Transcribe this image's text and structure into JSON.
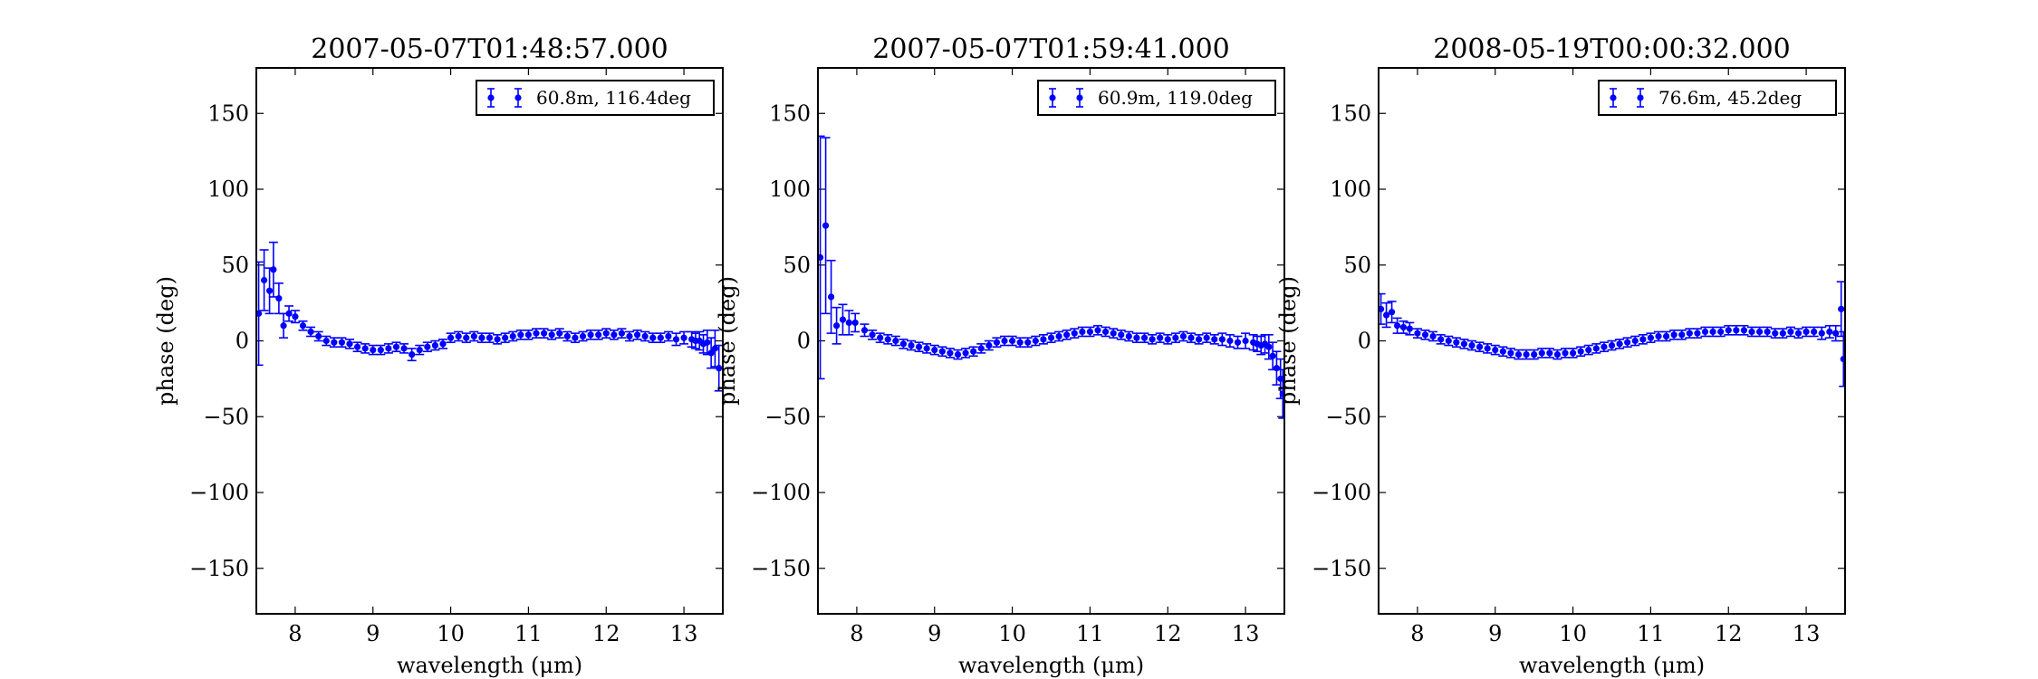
{
  "series_color": "#0000ff",
  "chart_data": [
    {
      "type": "scatter",
      "title": "2007-05-07T01:48:57.000",
      "xlabel": "wavelength (μm)",
      "ylabel": "phase (deg)",
      "xlim": [
        7.5,
        13.5
      ],
      "ylim": [
        -180,
        180
      ],
      "xticks": [
        8,
        9,
        10,
        11,
        12,
        13
      ],
      "yticks": [
        -150,
        -100,
        -50,
        0,
        50,
        100,
        150
      ],
      "grid": false,
      "legend_position": "top-right",
      "series": [
        {
          "name": "60.8m, 116.4deg",
          "x": [
            7.53,
            7.6,
            7.67,
            7.72,
            7.79,
            7.85,
            7.92,
            8.0,
            8.1,
            8.2,
            8.3,
            8.4,
            8.5,
            8.6,
            8.7,
            8.8,
            8.9,
            9.0,
            9.1,
            9.2,
            9.3,
            9.4,
            9.5,
            9.6,
            9.7,
            9.8,
            9.9,
            10.0,
            10.1,
            10.2,
            10.3,
            10.4,
            10.5,
            10.6,
            10.7,
            10.8,
            10.9,
            11.0,
            11.1,
            11.2,
            11.3,
            11.4,
            11.5,
            11.6,
            11.7,
            11.8,
            11.9,
            12.0,
            12.1,
            12.2,
            12.3,
            12.4,
            12.5,
            12.6,
            12.7,
            12.8,
            12.9,
            13.0,
            13.1,
            13.15,
            13.2,
            13.25,
            13.3,
            13.35,
            13.4,
            13.45
          ],
          "y": [
            18,
            40,
            33,
            47,
            28,
            10,
            18,
            16,
            10,
            6,
            3,
            0,
            -1,
            -1,
            -2,
            -4,
            -5,
            -6,
            -6,
            -5,
            -4,
            -5,
            -9,
            -6,
            -4,
            -3,
            -2,
            2,
            3,
            2,
            3,
            2,
            2,
            1,
            2,
            3,
            4,
            4,
            5,
            5,
            4,
            5,
            3,
            2,
            3,
            4,
            4,
            5,
            4,
            5,
            3,
            4,
            3,
            2,
            2,
            3,
            1,
            2,
            1,
            0,
            0,
            -2,
            -1,
            -8,
            -5,
            -18
          ],
          "err": [
            34,
            20,
            15,
            18,
            10,
            8,
            5,
            4,
            3,
            3,
            3,
            3,
            3,
            3,
            3,
            3,
            3,
            3,
            3,
            3,
            3,
            3,
            4,
            3,
            3,
            3,
            3,
            3,
            3,
            3,
            3,
            3,
            3,
            3,
            3,
            3,
            3,
            3,
            3,
            3,
            3,
            3,
            3,
            3,
            3,
            3,
            3,
            3,
            3,
            3,
            3,
            3,
            3,
            3,
            3,
            3,
            4,
            4,
            5,
            5,
            6,
            6,
            8,
            10,
            12,
            15
          ]
        }
      ]
    },
    {
      "type": "scatter",
      "title": "2007-05-07T01:59:41.000",
      "xlabel": "wavelength (μm)",
      "ylabel": "phase (deg)",
      "xlim": [
        7.5,
        13.5
      ],
      "ylim": [
        -180,
        180
      ],
      "xticks": [
        8,
        9,
        10,
        11,
        12,
        13
      ],
      "yticks": [
        -150,
        -100,
        -50,
        0,
        50,
        100,
        150
      ],
      "grid": false,
      "legend_position": "top-right",
      "series": [
        {
          "name": "60.9m, 119.0deg",
          "x": [
            7.53,
            7.6,
            7.67,
            7.74,
            7.82,
            7.9,
            7.98,
            8.1,
            8.2,
            8.3,
            8.4,
            8.5,
            8.6,
            8.7,
            8.8,
            8.9,
            9.0,
            9.1,
            9.2,
            9.3,
            9.4,
            9.5,
            9.6,
            9.7,
            9.8,
            9.9,
            10.0,
            10.1,
            10.2,
            10.3,
            10.4,
            10.5,
            10.6,
            10.7,
            10.8,
            10.9,
            11.0,
            11.1,
            11.2,
            11.3,
            11.4,
            11.5,
            11.6,
            11.7,
            11.8,
            11.9,
            12.0,
            12.1,
            12.2,
            12.3,
            12.4,
            12.5,
            12.6,
            12.7,
            12.8,
            12.9,
            13.0,
            13.1,
            13.15,
            13.2,
            13.25,
            13.3,
            13.35,
            13.4,
            13.45,
            13.48
          ],
          "y": [
            55,
            76,
            29,
            10,
            14,
            12,
            12,
            7,
            4,
            2,
            1,
            0,
            -2,
            -3,
            -4,
            -5,
            -6,
            -7,
            -8,
            -9,
            -8,
            -7,
            -5,
            -3,
            -1,
            0,
            0,
            -1,
            -1,
            0,
            1,
            2,
            3,
            4,
            5,
            6,
            6,
            7,
            6,
            5,
            4,
            3,
            2,
            2,
            1,
            2,
            1,
            2,
            3,
            2,
            1,
            2,
            1,
            1,
            0,
            -1,
            0,
            -1,
            -2,
            -3,
            -2,
            -4,
            -10,
            -18,
            -25,
            -35
          ],
          "err": [
            80,
            58,
            24,
            12,
            10,
            8,
            6,
            4,
            3,
            3,
            3,
            3,
            3,
            3,
            3,
            3,
            3,
            3,
            3,
            3,
            3,
            3,
            3,
            3,
            3,
            3,
            3,
            3,
            3,
            3,
            3,
            3,
            3,
            3,
            3,
            3,
            3,
            3,
            3,
            3,
            3,
            3,
            3,
            3,
            3,
            3,
            3,
            3,
            3,
            3,
            3,
            3,
            3,
            4,
            4,
            4,
            5,
            5,
            5,
            6,
            6,
            8,
            9,
            11,
            13,
            16
          ]
        }
      ]
    },
    {
      "type": "scatter",
      "title": "2008-05-19T00:00:32.000",
      "xlabel": "wavelength (μm)",
      "ylabel": "phase (deg)",
      "xlim": [
        7.5,
        13.5
      ],
      "ylim": [
        -180,
        180
      ],
      "xticks": [
        8,
        9,
        10,
        11,
        12,
        13
      ],
      "yticks": [
        -150,
        -100,
        -50,
        0,
        50,
        100,
        150
      ],
      "grid": false,
      "legend_position": "top-right",
      "series": [
        {
          "name": "76.6m, 45.2deg",
          "x": [
            7.53,
            7.6,
            7.67,
            7.74,
            7.82,
            7.9,
            8.0,
            8.1,
            8.2,
            8.3,
            8.4,
            8.5,
            8.6,
            8.7,
            8.8,
            8.9,
            9.0,
            9.1,
            9.2,
            9.3,
            9.4,
            9.5,
            9.6,
            9.7,
            9.8,
            9.9,
            10.0,
            10.1,
            10.2,
            10.3,
            10.4,
            10.5,
            10.6,
            10.7,
            10.8,
            10.9,
            11.0,
            11.1,
            11.2,
            11.3,
            11.4,
            11.5,
            11.6,
            11.7,
            11.8,
            11.9,
            12.0,
            12.1,
            12.2,
            12.3,
            12.4,
            12.5,
            12.6,
            12.7,
            12.8,
            12.9,
            13.0,
            13.1,
            13.2,
            13.3,
            13.38,
            13.45,
            13.48
          ],
          "y": [
            21,
            17,
            19,
            10,
            9,
            8,
            5,
            4,
            3,
            1,
            0,
            -1,
            -2,
            -3,
            -4,
            -5,
            -6,
            -7,
            -8,
            -9,
            -9,
            -9,
            -8,
            -8,
            -9,
            -8,
            -8,
            -7,
            -6,
            -5,
            -4,
            -3,
            -2,
            -1,
            0,
            1,
            2,
            3,
            3,
            4,
            4,
            5,
            5,
            6,
            6,
            6,
            7,
            7,
            7,
            6,
            6,
            6,
            5,
            5,
            6,
            5,
            6,
            6,
            5,
            6,
            5,
            21,
            -12
          ],
          "err": [
            10,
            8,
            7,
            5,
            4,
            4,
            3,
            3,
            3,
            3,
            3,
            3,
            3,
            3,
            3,
            3,
            3,
            3,
            3,
            3,
            3,
            3,
            3,
            3,
            3,
            3,
            3,
            3,
            3,
            3,
            3,
            3,
            3,
            3,
            3,
            3,
            3,
            3,
            3,
            3,
            3,
            3,
            3,
            3,
            3,
            3,
            3,
            3,
            3,
            3,
            3,
            3,
            3,
            3,
            3,
            3,
            3,
            3,
            4,
            4,
            5,
            18,
            18
          ]
        }
      ]
    }
  ]
}
